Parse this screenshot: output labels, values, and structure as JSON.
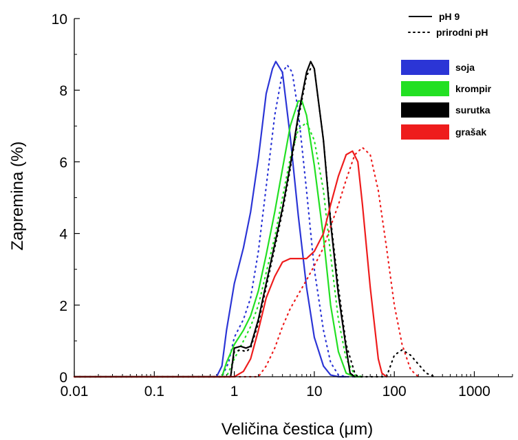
{
  "chart_data": {
    "type": "line",
    "title": "",
    "xlabel": "Veličina čestica (μm)",
    "ylabel": "Zapremina (%)",
    "xscale": "log",
    "xlim": [
      0.01,
      3000
    ],
    "ylim": [
      0,
      10
    ],
    "xticks": [
      0.01,
      0.1,
      1,
      10,
      100,
      1000
    ],
    "xtick_labels": [
      "0.01",
      "0.1",
      "1",
      "10",
      "100",
      "1000"
    ],
    "yticks": [
      0,
      2,
      4,
      6,
      8,
      10
    ],
    "ytick_labels": [
      "0",
      "2",
      "4",
      "6",
      "8",
      "10"
    ],
    "grid": false,
    "legend": {
      "placement": "top-right",
      "line_styles": [
        {
          "label": "pH 9",
          "style": "solid"
        },
        {
          "label": "prirodni pH",
          "style": "dotted"
        }
      ],
      "materials": [
        {
          "label": "soja",
          "color": "#2b35d6"
        },
        {
          "label": "krompir",
          "color": "#22e022"
        },
        {
          "label": "surutka",
          "color": "#000000"
        },
        {
          "label": "grašak",
          "color": "#ee1c1c"
        }
      ]
    },
    "series": [
      {
        "material": "soja",
        "condition": "pH 9",
        "color": "#2b35d6",
        "style": "solid",
        "x": [
          0.01,
          0.6,
          0.7,
          0.8,
          1.0,
          1.3,
          1.6,
          2.0,
          2.5,
          3.0,
          3.3,
          4.0,
          5.0,
          6.3,
          8.0,
          10,
          13,
          16,
          20,
          25
        ],
        "y": [
          0,
          0,
          0.3,
          1.3,
          2.6,
          3.6,
          4.6,
          6.1,
          7.9,
          8.6,
          8.8,
          8.5,
          6.7,
          4.5,
          2.5,
          1.1,
          0.3,
          0.05,
          0,
          0
        ]
      },
      {
        "material": "soja",
        "condition": "prirodni pH",
        "color": "#2b35d6",
        "style": "dotted",
        "x": [
          0.01,
          0.7,
          0.85,
          1.0,
          1.3,
          1.6,
          2.0,
          2.5,
          3.2,
          4.0,
          4.6,
          5.3,
          6.3,
          8.0,
          10,
          13,
          16,
          20,
          25,
          32
        ],
        "y": [
          0,
          0,
          0.4,
          1.1,
          1.6,
          2.2,
          3.5,
          5.3,
          7.3,
          8.5,
          8.7,
          8.5,
          7.4,
          5.2,
          3.0,
          1.3,
          0.4,
          0.05,
          0,
          0
        ]
      },
      {
        "material": "krompir",
        "condition": "pH 9",
        "color": "#22e022",
        "style": "solid",
        "x": [
          0.01,
          0.7,
          0.8,
          1.0,
          1.3,
          1.6,
          2.0,
          2.5,
          3.2,
          4.0,
          5.0,
          6.3,
          7.0,
          8.0,
          10,
          13,
          16,
          20,
          25,
          32,
          40
        ],
        "y": [
          0,
          0,
          0.4,
          0.9,
          1.3,
          1.7,
          2.4,
          3.4,
          4.6,
          5.8,
          7.0,
          7.7,
          7.7,
          7.3,
          5.9,
          3.9,
          2.0,
          0.7,
          0.1,
          0,
          0
        ]
      },
      {
        "material": "krompir",
        "condition": "prirodni pH",
        "color": "#22e022",
        "style": "dotted",
        "x": [
          0.01,
          0.8,
          1.0,
          1.3,
          1.6,
          2.0,
          2.5,
          3.2,
          4.0,
          5.0,
          6.3,
          8.0,
          10,
          13,
          16,
          20,
          25,
          32,
          40
        ],
        "y": [
          0,
          0,
          0.5,
          1.0,
          1.4,
          2.0,
          2.9,
          3.9,
          5.0,
          6.1,
          6.9,
          7.1,
          6.6,
          5.2,
          3.4,
          1.6,
          0.5,
          0.05,
          0
        ]
      },
      {
        "material": "surutka",
        "condition": "pH 9",
        "color": "#000000",
        "style": "solid",
        "x": [
          0.01,
          0.9,
          1.0,
          1.2,
          1.4,
          1.6,
          2.0,
          2.5,
          3.2,
          4.0,
          5.0,
          6.3,
          8.0,
          9.0,
          10,
          13,
          16,
          20,
          25,
          28,
          32
        ],
        "y": [
          0,
          0,
          0.8,
          0.85,
          0.8,
          0.85,
          1.6,
          2.6,
          3.7,
          4.7,
          5.9,
          7.3,
          8.5,
          8.8,
          8.6,
          6.6,
          4.3,
          2.3,
          0.8,
          0.1,
          0
        ]
      },
      {
        "material": "surutka",
        "condition": "prirodni pH",
        "color": "#000000",
        "style": "dotted",
        "x": [
          0.01,
          0.9,
          1.0,
          1.2,
          1.4,
          1.6,
          2.0,
          2.5,
          3.2,
          4.0,
          5.0,
          6.3,
          8.0,
          9.5,
          10,
          13,
          16,
          20,
          25,
          32,
          35,
          80,
          100,
          125,
          160,
          200,
          250,
          320
        ],
        "y": [
          0,
          0,
          0.7,
          0.75,
          0.7,
          0.8,
          1.5,
          2.5,
          3.6,
          4.6,
          5.8,
          7.2,
          8.4,
          8.7,
          8.6,
          6.6,
          4.4,
          2.5,
          0.9,
          0.1,
          0,
          0,
          0.6,
          0.75,
          0.6,
          0.35,
          0.1,
          0
        ]
      },
      {
        "material": "grašak",
        "condition": "pH 9",
        "color": "#ee1c1c",
        "style": "solid",
        "x": [
          0.01,
          1.0,
          1.3,
          1.6,
          2.0,
          2.5,
          3.2,
          4.0,
          5.0,
          6.3,
          8.0,
          10,
          13,
          16,
          20,
          25,
          30,
          35,
          40,
          50,
          63,
          70,
          80
        ],
        "y": [
          0,
          0,
          0.15,
          0.5,
          1.3,
          2.2,
          2.8,
          3.2,
          3.3,
          3.3,
          3.3,
          3.5,
          4.0,
          4.8,
          5.6,
          6.2,
          6.3,
          6.0,
          4.8,
          2.5,
          0.5,
          0.1,
          0
        ]
      },
      {
        "material": "grašak",
        "condition": "prirodni pH",
        "color": "#ee1c1c",
        "style": "dotted",
        "x": [
          0.01,
          2.0,
          2.5,
          3.2,
          4.0,
          5.0,
          6.3,
          8.0,
          10,
          13,
          16,
          20,
          25,
          32,
          40,
          50,
          63,
          80,
          100,
          125,
          160,
          200
        ],
        "y": [
          0,
          0,
          0.3,
          0.8,
          1.4,
          1.9,
          2.3,
          2.7,
          3.1,
          3.6,
          4.2,
          4.8,
          5.5,
          6.2,
          6.4,
          6.2,
          5.2,
          3.6,
          2.0,
          0.9,
          0.2,
          0
        ]
      }
    ]
  }
}
